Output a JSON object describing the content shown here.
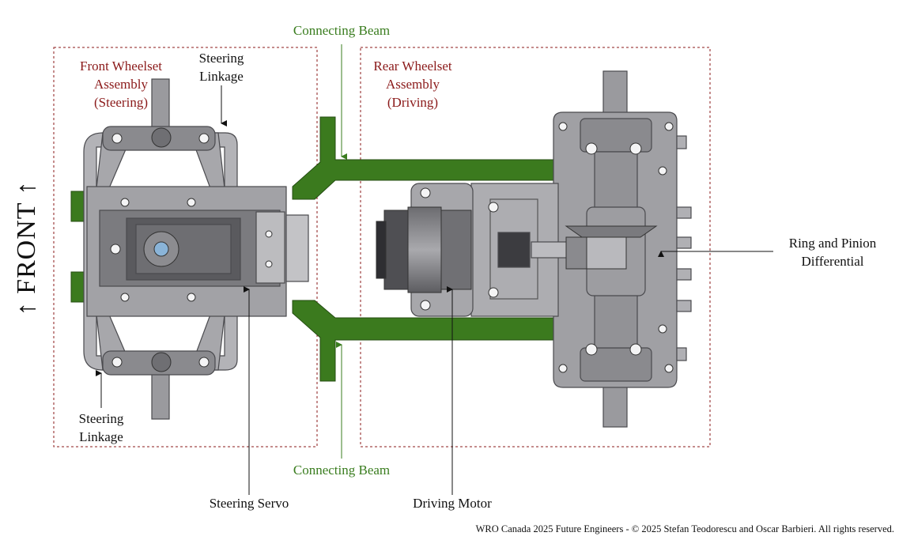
{
  "labels": {
    "front": "↑ FRONT ↑",
    "front_wheelset": [
      "Front Wheelset",
      "Assembly",
      "(Steering)"
    ],
    "rear_wheelset": [
      "Rear Wheelset",
      "Assembly",
      "(Driving)"
    ],
    "steering_linkage_top": [
      "Steering",
      "Linkage"
    ],
    "steering_linkage_bottom": [
      "Steering",
      "Linkage"
    ],
    "connecting_beam_top": "Connecting Beam",
    "connecting_beam_bottom": "Connecting Beam",
    "steering_servo": "Steering Servo",
    "driving_motor": "Driving Motor",
    "differential": [
      "Ring and Pinion",
      "Differential"
    ]
  },
  "footer": "WRO Canada 2025 Future Engineers - © 2025 Stefan Teodorescu and Oscar Barbieri. All rights reserved.",
  "colors": {
    "assembly_label": "#8b1a1a",
    "beam": "#3a7d1f",
    "part_gray": "#8e8e93",
    "dashed_box": "#8b1a1a"
  }
}
